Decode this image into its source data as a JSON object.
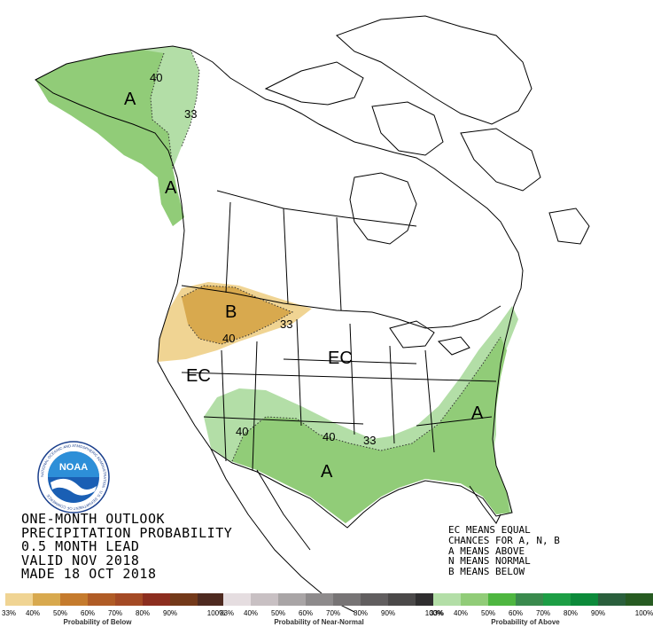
{
  "title": {
    "line1": "ONE-MONTH OUTLOOK",
    "line2": "PRECIPITATION PROBABILITY",
    "line3": "0.5 MONTH LEAD",
    "line4": "VALID NOV 2018",
    "line5": "MADE 18 OCT 2018"
  },
  "key": {
    "line1": "EC MEANS EQUAL",
    "line2": "CHANCES FOR A, N, B",
    "line3": "A MEANS ABOVE",
    "line4": "N MEANS NORMAL",
    "line5": "B MEANS BELOW"
  },
  "map_labels": {
    "alaska_a": "A",
    "alaska_panhandle_a": "A",
    "alaska_40": "40",
    "alaska_33": "33",
    "northwest_b": "B",
    "northwest_40": "40",
    "northwest_33": "33",
    "west_ec": "EC",
    "central_ec": "EC",
    "southwest_40": "40",
    "south_40": "40",
    "south_33": "33",
    "south_a": "A",
    "southeast_a": "A"
  },
  "colors": {
    "below": [
      "#f0d493",
      "#d8a94e",
      "#c57b2d",
      "#b05c26",
      "#a44a25",
      "#8c2e1f",
      "#73391a",
      "#4e2a20"
    ],
    "normal": [
      "#e5dde0",
      "#c8c0c3",
      "#a9a5a6",
      "#8e8b8c",
      "#777475",
      "#615e5f",
      "#4b4949",
      "#2f2e2f"
    ],
    "above": [
      "#b3dea7",
      "#91cc78",
      "#4eb640",
      "#3a8a4d",
      "#1d9e45",
      "#0c8a3a",
      "#2a5f3c",
      "#275b22"
    ]
  },
  "scale_ticks": {
    "below": [
      "33%",
      "40%",
      "50%",
      "60%",
      "70%",
      "80%",
      "90%",
      "100%"
    ],
    "normal": [
      "33%",
      "40%",
      "50%",
      "60%",
      "70%",
      "80%",
      "90%",
      "100%"
    ],
    "above": [
      "33%",
      "40%",
      "50%",
      "60%",
      "70%",
      "80%",
      "90%",
      "100%"
    ]
  },
  "scale_titles": {
    "below": "Probability of Below",
    "normal": "Probability of Near-Normal",
    "above": "Probability of Above"
  },
  "logo": {
    "text": "NOAA",
    "ring_text": "NATIONAL OCEANIC AND ATMOSPHERIC ADMINISTRATION · U.S. DEPARTMENT OF COMMERCE"
  }
}
